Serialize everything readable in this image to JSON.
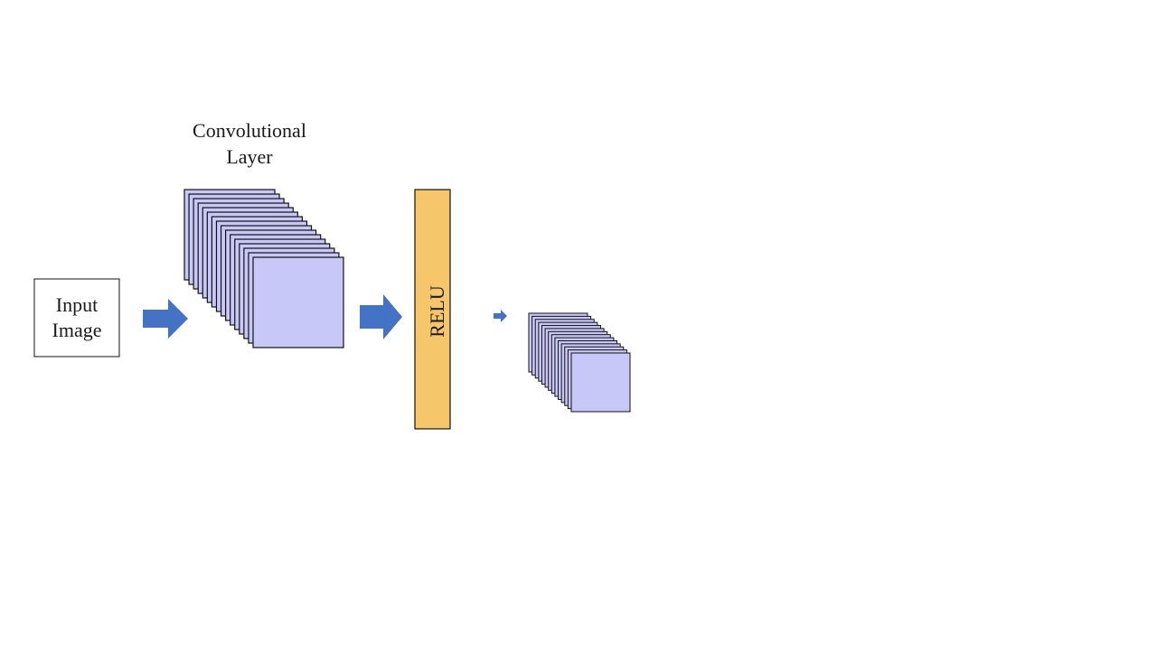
{
  "diagram": {
    "input": {
      "line1": "Input",
      "line2": "Image"
    },
    "conv": {
      "title_line1": "Convolutional",
      "title_line2": "Layer"
    },
    "relu": {
      "label": "RELU"
    },
    "colors": {
      "feature_map_fill": "#c8c8f8",
      "relu_fill": "#f5c76a",
      "arrow_fill": "#4472c4",
      "border": "#111111",
      "background": "#ffffff"
    }
  }
}
